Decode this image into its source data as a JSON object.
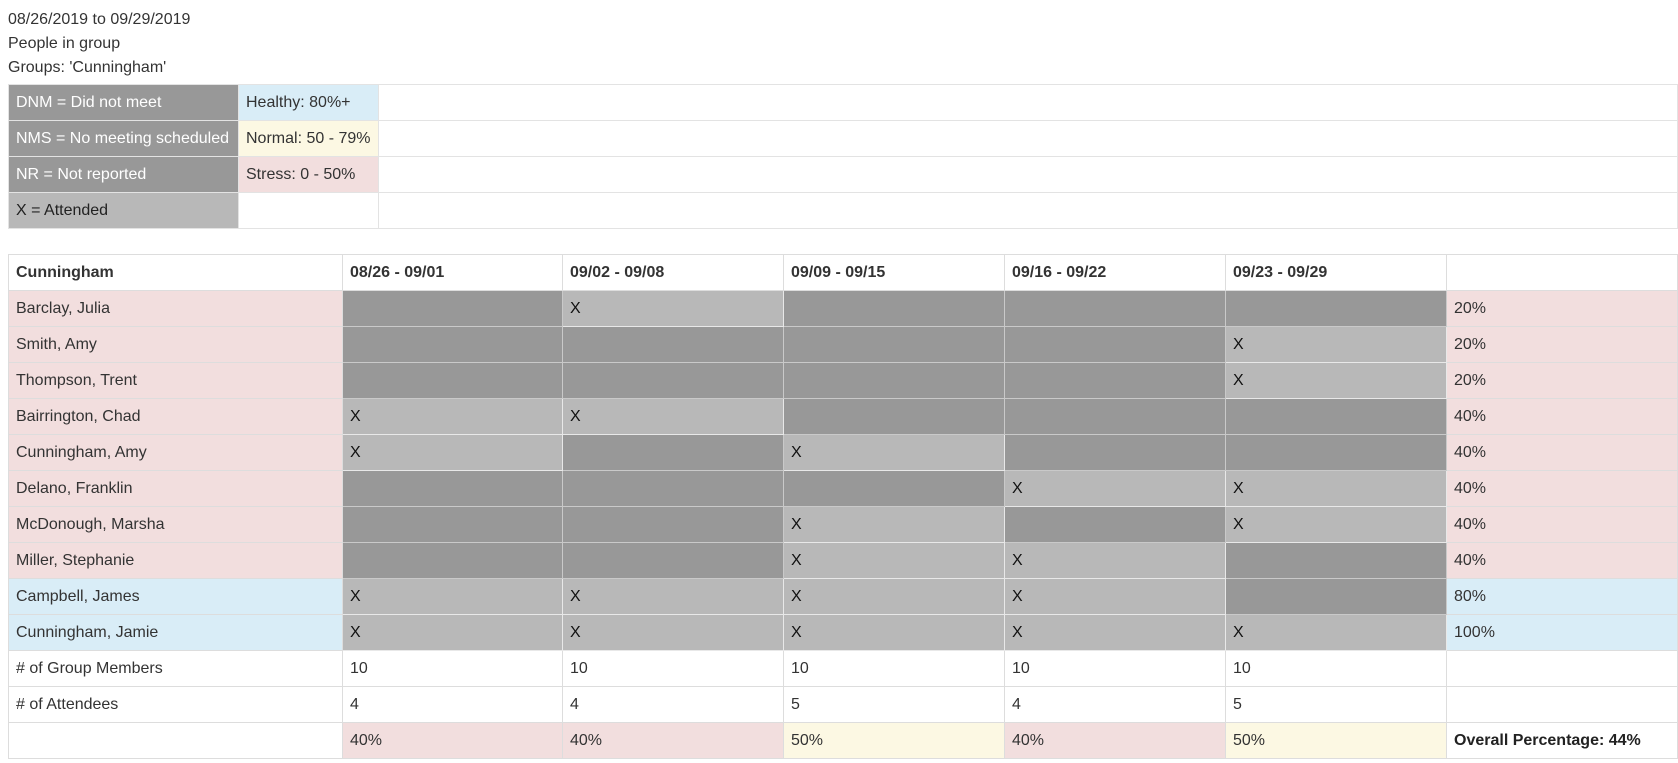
{
  "header": {
    "date_range": "08/26/2019 to 09/29/2019",
    "subtitle": "People in group",
    "groups": "Groups: 'Cunningham'"
  },
  "legend": {
    "codes": [
      "DNM = Did not meet",
      "NMS = No meeting scheduled",
      "NR = Not reported",
      "X = Attended"
    ],
    "levels": [
      "Healthy: 80%+",
      "Normal: 50 - 79%",
      "Stress: 0 - 50%",
      ""
    ]
  },
  "report": {
    "group_name": "Cunningham",
    "weeks": [
      "08/26 - 09/01",
      "09/02 - 09/08",
      "09/09 - 09/15",
      "09/16 - 09/22",
      "09/23 - 09/29"
    ],
    "rows": [
      {
        "name": "Barclay, Julia",
        "cells": [
          "",
          "X",
          "",
          "",
          ""
        ],
        "pct": "20%",
        "status": "stress"
      },
      {
        "name": "Smith, Amy",
        "cells": [
          "",
          "",
          "",
          "",
          "X"
        ],
        "pct": "20%",
        "status": "stress"
      },
      {
        "name": "Thompson, Trent",
        "cells": [
          "",
          "",
          "",
          "",
          "X"
        ],
        "pct": "20%",
        "status": "stress"
      },
      {
        "name": "Bairrington, Chad",
        "cells": [
          "X",
          "X",
          "",
          "",
          ""
        ],
        "pct": "40%",
        "status": "stress"
      },
      {
        "name": "Cunningham, Amy",
        "cells": [
          "X",
          "",
          "X",
          "",
          ""
        ],
        "pct": "40%",
        "status": "stress"
      },
      {
        "name": "Delano, Franklin",
        "cells": [
          "",
          "",
          "",
          "X",
          "X"
        ],
        "pct": "40%",
        "status": "stress"
      },
      {
        "name": "McDonough, Marsha",
        "cells": [
          "",
          "",
          "X",
          "",
          "X"
        ],
        "pct": "40%",
        "status": "stress"
      },
      {
        "name": "Miller, Stephanie",
        "cells": [
          "",
          "",
          "X",
          "X",
          ""
        ],
        "pct": "40%",
        "status": "stress"
      },
      {
        "name": "Campbell, James",
        "cells": [
          "X",
          "X",
          "X",
          "X",
          ""
        ],
        "pct": "80%",
        "status": "healthy"
      },
      {
        "name": "Cunningham, Jamie",
        "cells": [
          "X",
          "X",
          "X",
          "X",
          "X"
        ],
        "pct": "100%",
        "status": "healthy"
      }
    ],
    "members_label": "# of Group Members",
    "members": [
      "10",
      "10",
      "10",
      "10",
      "10"
    ],
    "attendees_label": "# of Attendees",
    "attendees": [
      "4",
      "4",
      "5",
      "4",
      "5"
    ],
    "week_pcts": [
      {
        "value": "40%",
        "status": "stress"
      },
      {
        "value": "40%",
        "status": "stress"
      },
      {
        "value": "50%",
        "status": "normal"
      },
      {
        "value": "40%",
        "status": "stress"
      },
      {
        "value": "50%",
        "status": "normal"
      }
    ],
    "overall": "Overall Percentage: 44%"
  },
  "colors": {
    "dnm": "#989898",
    "attended": "#b8b8b8",
    "healthy": "#d9edf7",
    "normal": "#fcf8e3",
    "stress": "#f2dede"
  }
}
